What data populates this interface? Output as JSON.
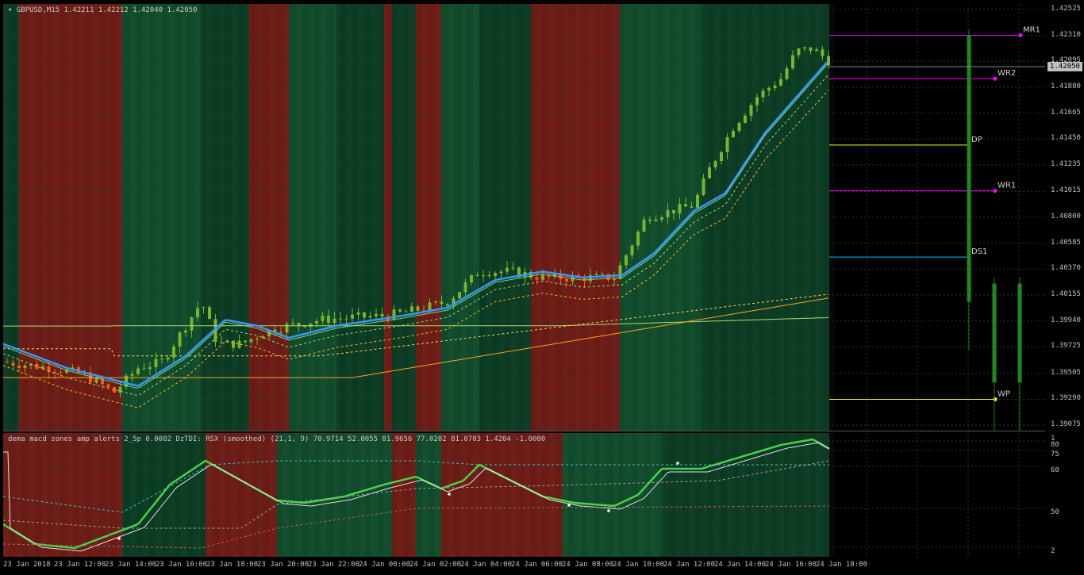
{
  "chart_header": {
    "symbol": "GBPUSD,M15",
    "open": "1.42211",
    "high": "1.42212",
    "low": "1.42040",
    "close": "1.42050"
  },
  "oscillator_header": "dema macd zones amp alerts 2_5p 0.0002   DzTDI:  RSX (smoothed) (21,1, 9) 70.9714 52.0055 81.9656 77.0202 81.0703 1.4204 -1.0000",
  "current_price": "1.42050",
  "price_axis": [
    "1.42525",
    "1.42310",
    "1.42095",
    "1.41880",
    "1.41665",
    "1.41450",
    "1.41235",
    "1.41015",
    "1.40800",
    "1.40585",
    "1.40370",
    "1.40155",
    "1.39940",
    "1.39725",
    "1.39505",
    "1.39290",
    "1.39075"
  ],
  "osc_axis": [
    "1",
    "80",
    "75",
    "68",
    "50",
    "2"
  ],
  "time_axis": [
    "23 Jan 2018",
    "23 Jan 12:00",
    "23 Jan 14:00",
    "23 Jan 16:00",
    "23 Jan 18:00",
    "23 Jan 20:00",
    "23 Jan 22:00",
    "24 Jan 00:00",
    "24 Jan 02:00",
    "24 Jan 04:00",
    "24 Jan 06:00",
    "24 Jan 08:00",
    "24 Jan 10:00",
    "24 Jan 12:00",
    "24 Jan 14:00",
    "24 Jan 16:00",
    "24 Jan 18:00"
  ],
  "pivots": [
    {
      "label": "MR1",
      "price": 1.4231,
      "color": "#ff00ff"
    },
    {
      "label": "WR2",
      "price": 1.4195,
      "color": "#ff00ff"
    },
    {
      "label": "DP",
      "price": 1.414,
      "color": "#ffff00"
    },
    {
      "label": "WR1",
      "price": 1.4102,
      "color": "#ff00ff"
    },
    {
      "label": "DS1",
      "price": 1.4047,
      "color": "#00bfff"
    },
    {
      "label": "WP",
      "price": 1.3929,
      "color": "#ffff00"
    }
  ],
  "colors": {
    "bull_zone": "#0f4a2a",
    "bull_zone_dark": "#0a3a22",
    "bear_zone": "#6b1a14",
    "ma_blue": "#3399ff",
    "candle_up": "#7ab32e",
    "candle_dn": "#ff5a00"
  }
}
